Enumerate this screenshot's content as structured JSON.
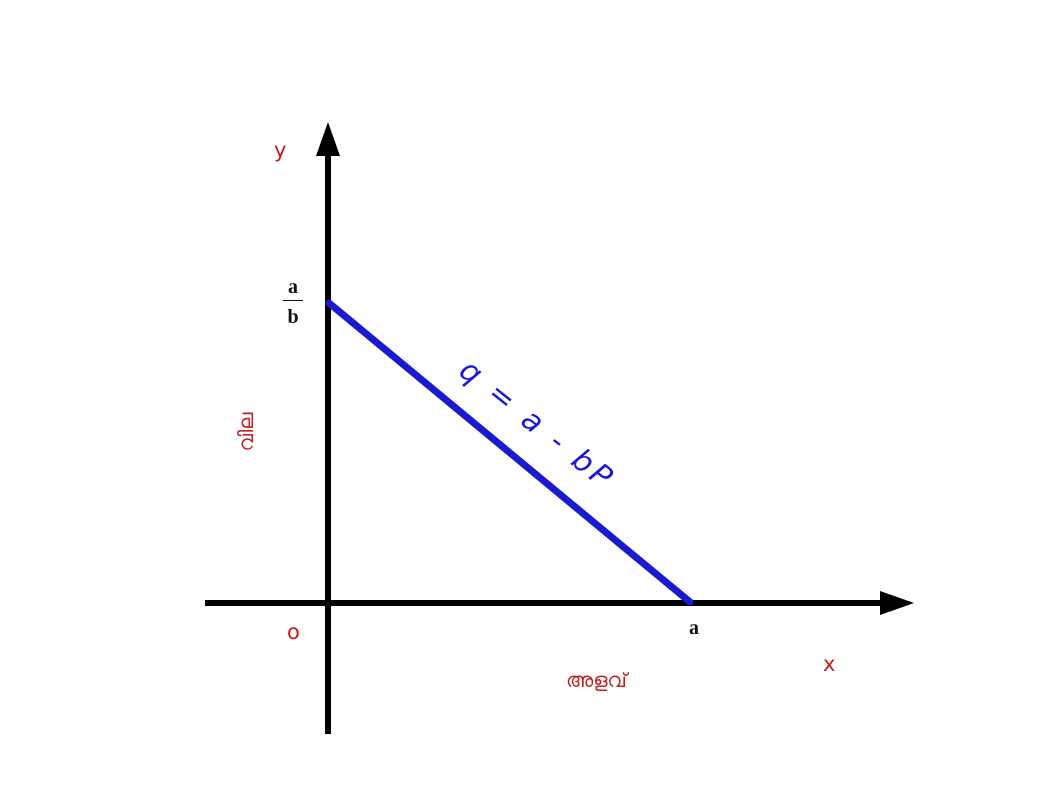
{
  "diagram": {
    "axes": {
      "y_label": "y",
      "x_label": "x",
      "origin_label": "o",
      "x_title": "അളവ്",
      "y_title": "വില"
    },
    "intercepts": {
      "x": "a",
      "y_numerator": "a",
      "y_denominator": "b"
    },
    "line_label": "q = a - bP",
    "colors": {
      "axis": "#000000",
      "line": "#1a1ad0",
      "axis_text": "#c02020",
      "intercept_text": "#111111"
    }
  }
}
